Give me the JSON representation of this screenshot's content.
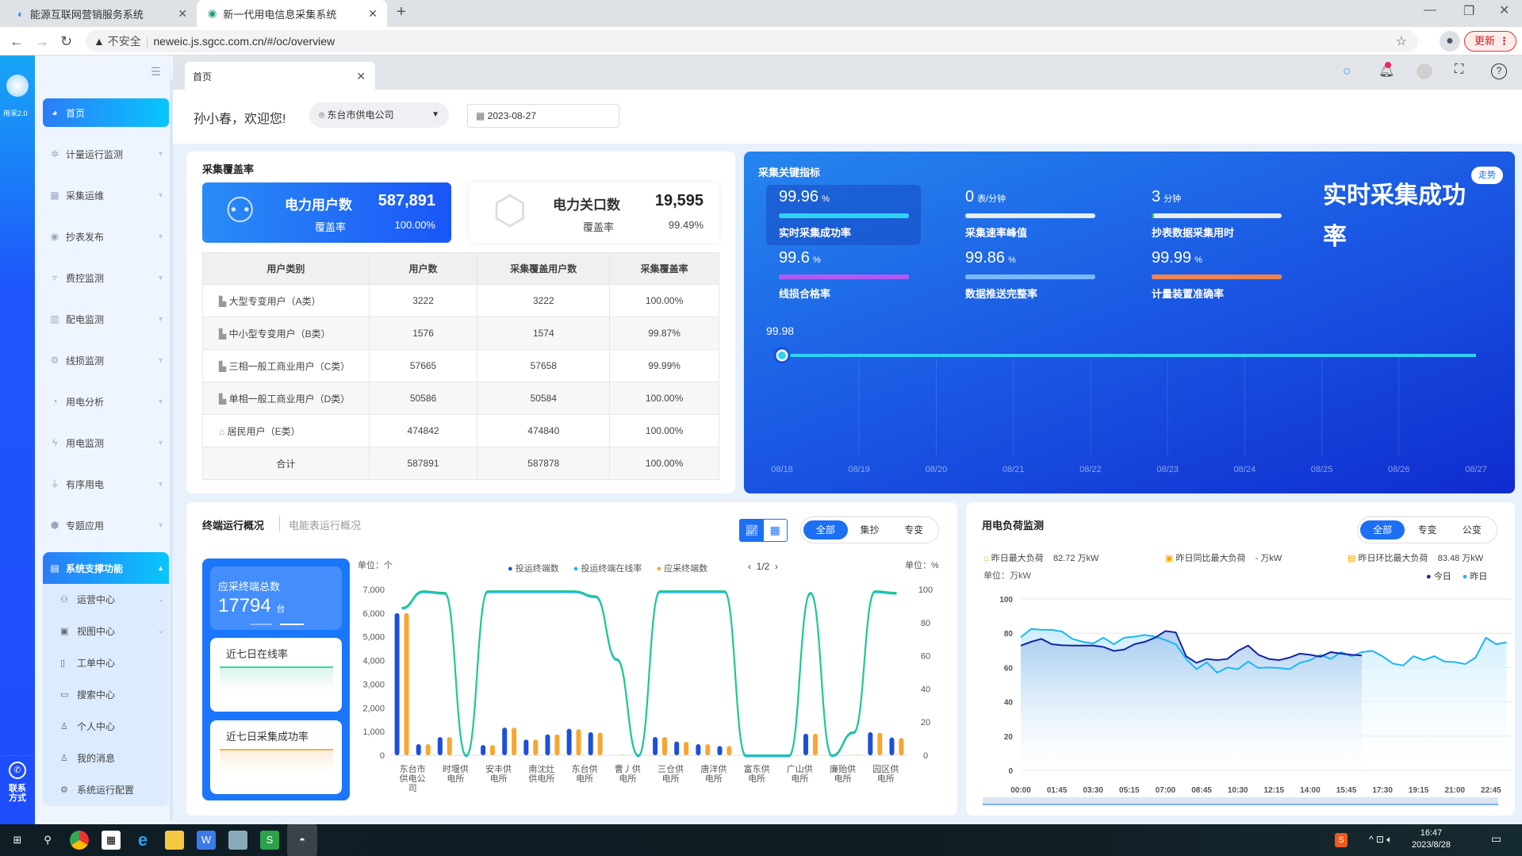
{
  "browser": {
    "tabs": [
      {
        "title": "能源互联网营销服务系统"
      },
      {
        "title": "新一代用电信息采集系统"
      }
    ],
    "security": "不安全",
    "url": "neweic.js.sgcc.com.cn/#/oc/overview",
    "update_label": "更新"
  },
  "app": {
    "logo_text": "用采2.0",
    "contact_label": "联系方式",
    "page_tab": "首页",
    "welcome": "孙小春，欢迎您!",
    "org_select": "东台市供电公司",
    "date": "2023-08-27"
  },
  "sidebar": {
    "items": [
      {
        "label": "首页"
      },
      {
        "label": "计量运行监测"
      },
      {
        "label": "采集运维"
      },
      {
        "label": "抄表发布"
      },
      {
        "label": "费控监测"
      },
      {
        "label": "配电监测"
      },
      {
        "label": "线损监测"
      },
      {
        "label": "用电分析"
      },
      {
        "label": "用电监测"
      },
      {
        "label": "有序用电"
      },
      {
        "label": "专题应用"
      },
      {
        "label": "系统支撑功能"
      }
    ],
    "sub_items": [
      {
        "label": "运营中心"
      },
      {
        "label": "视图中心"
      },
      {
        "label": "工单中心"
      },
      {
        "label": "搜索中心"
      },
      {
        "label": "个人中心"
      },
      {
        "label": "我的消息"
      },
      {
        "label": "系统运行配置"
      }
    ]
  },
  "coverage": {
    "title": "采集覆盖率",
    "card1": {
      "label": "电力用户数",
      "value": "587,891",
      "rate_label": "覆盖率",
      "rate": "100.00%"
    },
    "card2": {
      "label": "电力关口数",
      "value": "19,595",
      "rate_label": "覆盖率",
      "rate": "99.49%"
    },
    "table": {
      "headers": [
        "用户类别",
        "用户数",
        "采集覆盖用户数",
        "采集覆盖率"
      ],
      "rows": [
        [
          "大型专变用户（A类）",
          "3222",
          "3222",
          "100.00%"
        ],
        [
          "中小型专变用户（B类）",
          "1576",
          "1574",
          "99.87%"
        ],
        [
          "三相一般工商业用户（C类）",
          "57665",
          "57658",
          "99.99%"
        ],
        [
          "单相一般工商业用户（D类）",
          "50586",
          "50584",
          "100.00%"
        ],
        [
          "居民用户（E类）",
          "474842",
          "474840",
          "100.00%"
        ],
        [
          "合计",
          "587891",
          "587878",
          "100.00%"
        ]
      ]
    }
  },
  "key_metrics": {
    "title": "采集关键指标",
    "trend_button": "走势",
    "big_title": "实时采集成功率",
    "items": [
      {
        "value": "99.96",
        "unit": "%",
        "label": "实时采集成功率",
        "color": "#2ed3f5",
        "fill": 1
      },
      {
        "value": "0",
        "unit": "表/分钟",
        "label": "采集速率峰值",
        "color": "#ffffff",
        "fill": 0
      },
      {
        "value": "3",
        "unit": "分钟",
        "label": "抄表数据采集用时",
        "color": "#27c26c",
        "fill": 0.02
      },
      {
        "value": "99.6",
        "unit": "%",
        "label": "线损合格率",
        "color": "#b15af5",
        "fill": 1
      },
      {
        "value": "99.86",
        "unit": "%",
        "label": "数据推送完整率",
        "color": "#7ab9ff",
        "fill": 1
      },
      {
        "value": "99.99",
        "unit": "%",
        "label": "计量装置准确率",
        "color": "#ef8450",
        "fill": 1
      }
    ],
    "trend": {
      "dates": [
        "08/18",
        "08/19",
        "08/20",
        "08/21",
        "08/22",
        "08/23",
        "08/24",
        "08/25",
        "08/26",
        "08/27"
      ],
      "highlight_value": "99.98"
    }
  },
  "terminal": {
    "tab_active": "终端运行概况",
    "tab_other": "电能表运行概况",
    "filters": [
      "全部",
      "集抄",
      "专变"
    ],
    "active_filter": "全部",
    "total_label": "应采终端总数",
    "total_value": "17794",
    "total_unit": "台",
    "online_label": "近七日在线率",
    "success_label": "近七日采集成功率"
  },
  "chart_data": [
    {
      "type": "bar",
      "left_unit": "单位：个",
      "right_unit": "单位：%",
      "page": "1/2",
      "categories": [
        "东台市供电公司",
        "",
        "时堰供电所",
        "",
        "安丰供电所",
        "",
        "南沈灶供电所",
        "",
        "东台供电所",
        "",
        "曹丿供电所",
        "",
        "三仓供电所",
        "",
        "唐洋供电所",
        "",
        "富东供电所",
        "",
        "广山供电所",
        "",
        "廉贻供电所",
        "",
        "园区供电所",
        ""
      ],
      "series": [
        {
          "name": "投运终端数",
          "kind": "bar",
          "color": "#1e4fd8",
          "values": [
            6000,
            470,
            770,
            0,
            430,
            1170,
            660,
            880,
            1120,
            970,
            0,
            0,
            770,
            580,
            470,
            390,
            0,
            0,
            0,
            910,
            0,
            0,
            970,
            750
          ]
        },
        {
          "name": "投运终端在线率",
          "kind": "line",
          "axis": "right",
          "color": "#1ec98a",
          "values": [
            89,
            99,
            98,
            0,
            99,
            99,
            99,
            99,
            99,
            96,
            58,
            0,
            99,
            99,
            99,
            99,
            0,
            0,
            0,
            98,
            0,
            14,
            99,
            98
          ]
        },
        {
          "name": "应采终端数",
          "kind": "bar",
          "color": "#f8a531",
          "values": [
            6000,
            470,
            770,
            0,
            430,
            1170,
            660,
            880,
            1100,
            960,
            20,
            0,
            770,
            570,
            470,
            390,
            0,
            0,
            0,
            910,
            0,
            20,
            950,
            730
          ]
        }
      ],
      "ylim": [
        0,
        7000
      ],
      "yticks": [
        "7,000",
        "6,000",
        "5,000",
        "4,000",
        "3,000",
        "2,000",
        "1,000",
        "0"
      ],
      "y2lim": [
        0,
        100
      ],
      "y2ticks": [
        "100",
        "80",
        "60",
        "40",
        "20",
        "0"
      ],
      "legend": "top"
    },
    {
      "type": "area",
      "title": "用电负荷监测",
      "unit": "单位：万kW",
      "filters": [
        "全部",
        "专变",
        "公变"
      ],
      "active_filter": "全部",
      "stats": [
        {
          "label": "昨日最大负荷",
          "value": "82.72 万kW"
        },
        {
          "label": "昨日同比最大负荷",
          "value": "- 万kW"
        },
        {
          "label": "昨日环比最大负荷",
          "value": "83.48 万kW"
        }
      ],
      "xticks": [
        "00:00",
        "01:45",
        "03:30",
        "05:15",
        "07:00",
        "08:45",
        "10:30",
        "12:15",
        "14:00",
        "15:45",
        "17:30",
        "19:15",
        "21:00",
        "22:45"
      ],
      "x_interval_minutes": 30,
      "ylim": [
        0,
        100
      ],
      "yticks": [
        "100",
        "80",
        "60",
        "40",
        "20",
        "0"
      ],
      "legend": "top-right",
      "series": [
        {
          "name": "今日",
          "color": "#1424a8",
          "values": [
            72.8,
            75,
            76.7,
            73.6,
            73,
            72.8,
            72.8,
            72.8,
            72,
            69.7,
            70.5,
            73.6,
            75,
            77.4,
            81.3,
            80.5,
            66.6,
            62.7,
            65,
            64.3,
            65,
            69.7,
            72.8,
            67.4,
            65,
            64.3,
            65.8,
            68.1,
            67.4,
            66.3,
            69,
            68.1,
            67.4,
            67
          ]
        },
        {
          "name": "昨日",
          "color": "#1cb6f5",
          "values": [
            77.6,
            82.5,
            82,
            82,
            81,
            76.7,
            75,
            74,
            77.4,
            73.6,
            77.4,
            78,
            79,
            78,
            76,
            73.6,
            65,
            59,
            63,
            57,
            60,
            59,
            63.5,
            59.7,
            60,
            59.7,
            59,
            62.7,
            64.3,
            67.4,
            65,
            69,
            66.6,
            69,
            69.7,
            66.6,
            62.3,
            61.2,
            66.6,
            64.3,
            66.6,
            63.5,
            63.2,
            62,
            65.8,
            77.4,
            73.6,
            74.7
          ]
        }
      ]
    }
  ],
  "taskbar": {
    "time": "16:47",
    "date": "2023/8/28"
  }
}
